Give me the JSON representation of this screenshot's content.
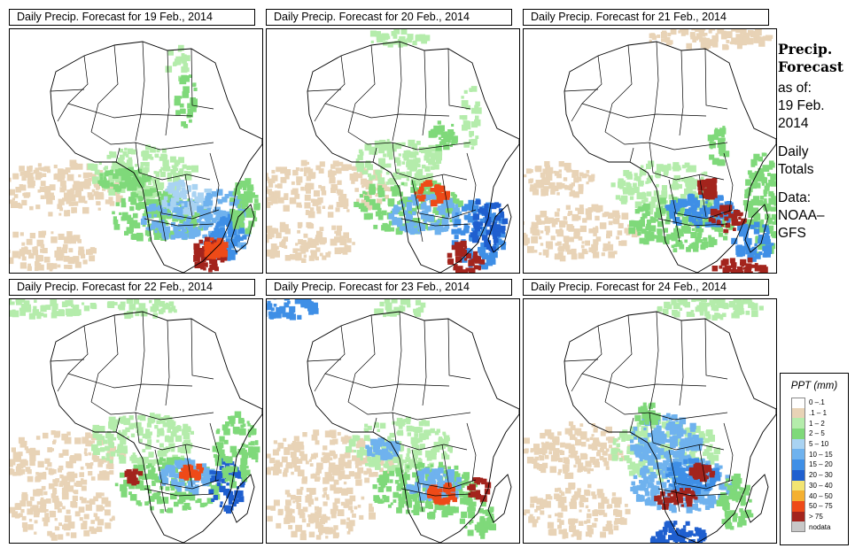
{
  "panels": [
    {
      "title": "Daily Precip. Forecast for  19 Feb., 2014"
    },
    {
      "title": "Daily Precip. Forecast for  20 Feb., 2014"
    },
    {
      "title": "Daily Precip. Forecast for  21 Feb., 2014"
    },
    {
      "title": "Daily Precip. Forecast for  22 Feb., 2014"
    },
    {
      "title": "Daily Precip. Forecast for  23 Feb., 2014"
    },
    {
      "title": "Daily Precip. Forecast for  24 Feb., 2014"
    }
  ],
  "info": {
    "line1": "Precip.",
    "line2": "Forecast",
    "line3": "as of:",
    "line4": "19 Feb.",
    "line5": "2014",
    "line6": "Daily",
    "line7": "Totals",
    "line8": "Data:",
    "line9": "NOAA–",
    "line10": "GFS"
  },
  "legend": {
    "title": "PPT (mm)",
    "items": [
      {
        "label": "0 –.1",
        "color": "#ffffff"
      },
      {
        "label": ".1 – 1",
        "color": "#e8d3b6"
      },
      {
        "label": "1 – 2",
        "color": "#b4ecab"
      },
      {
        "label": "2 – 5",
        "color": "#7fd97a"
      },
      {
        "label": "5 – 10",
        "color": "#a9d3f2"
      },
      {
        "label": "10 – 15",
        "color": "#6fb2ee"
      },
      {
        "label": "15 – 20",
        "color": "#3f8fe6"
      },
      {
        "label": "20 – 30",
        "color": "#1f5fcf"
      },
      {
        "label": "30 – 40",
        "color": "#f2e472"
      },
      {
        "label": "40 – 50",
        "color": "#f5b031"
      },
      {
        "label": "50 – 75",
        "color": "#ee4a18"
      },
      {
        "label": "> 75",
        "color": "#a3241d"
      },
      {
        "label": "nodata",
        "color": "#c8c8c8"
      }
    ]
  }
}
